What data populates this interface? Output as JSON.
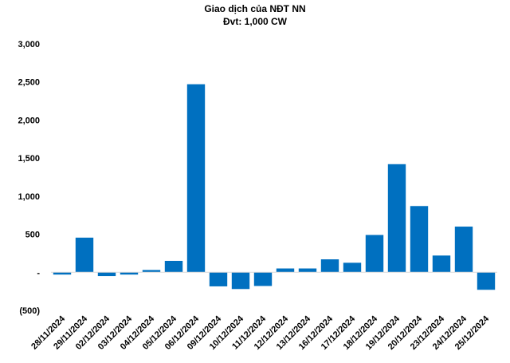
{
  "chart_data": {
    "type": "bar",
    "title": "Giao dịch của NĐT NN",
    "subtitle": "Đvt: 1,000 CW",
    "categories": [
      "28/11/2024",
      "29/11/2024",
      "02/12/2024",
      "03/12/2024",
      "04/12/2024",
      "05/12/2024",
      "06/12/2024",
      "09/12/2024",
      "10/12/2024",
      "11/12/2024",
      "12/12/2024",
      "13/12/2024",
      "16/12/2024",
      "17/12/2024",
      "18/12/2024",
      "19/12/2024",
      "20/12/2024",
      "23/12/2024",
      "24/12/2024",
      "25/12/2024"
    ],
    "values": [
      -30,
      455,
      -50,
      -30,
      30,
      150,
      2470,
      -185,
      -220,
      -180,
      50,
      50,
      170,
      125,
      490,
      1420,
      870,
      220,
      600,
      -230
    ],
    "ylim": [
      -500,
      3000
    ],
    "yticks": [
      {
        "value": 3000,
        "label": "3,000"
      },
      {
        "value": 2500,
        "label": "2,500"
      },
      {
        "value": 2000,
        "label": "2,000"
      },
      {
        "value": 1500,
        "label": "1,500"
      },
      {
        "value": 1000,
        "label": "1,000"
      },
      {
        "value": 500,
        "label": "500"
      },
      {
        "value": 0,
        "label": "-"
      },
      {
        "value": -500,
        "label": "(500)"
      }
    ],
    "xlabel": "",
    "ylabel": "",
    "grid": false,
    "bar_color": "#0070C0",
    "axis_color": "#D9D9D9"
  }
}
